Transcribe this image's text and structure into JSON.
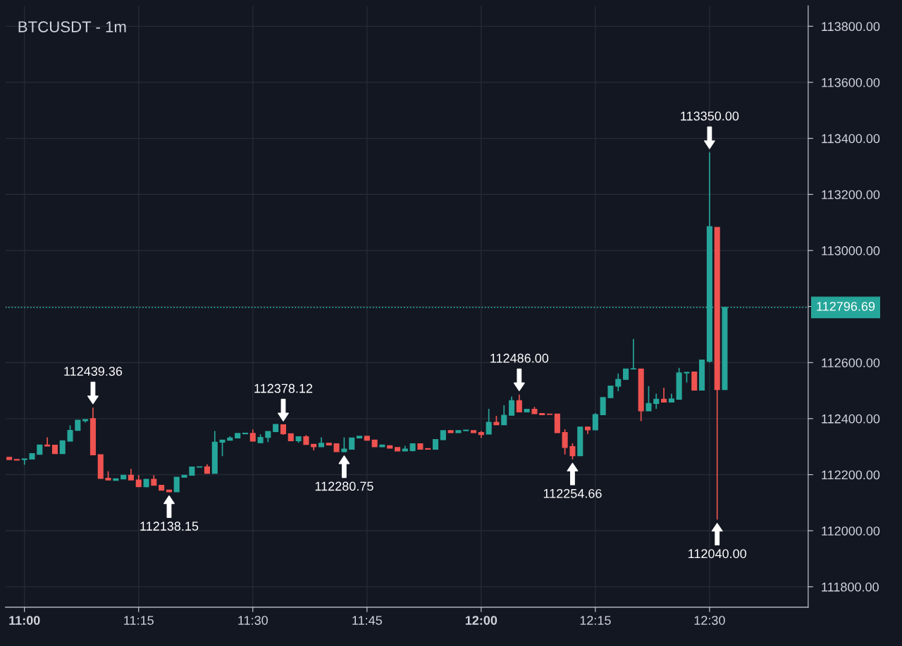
{
  "chart_data": {
    "type": "candlestick",
    "title": "BTCUSDT - 1m",
    "x": [
      10.9667,
      10.9833,
      11.0,
      11.0167,
      11.0333,
      11.05,
      11.0667,
      11.0833,
      11.1,
      11.1167,
      11.1333,
      11.15,
      11.1667,
      11.1833,
      11.2,
      11.2167,
      11.2333,
      11.25,
      11.2667,
      11.2833,
      11.3,
      11.3167,
      11.3333,
      11.35,
      11.3667,
      11.3833,
      11.4,
      11.4167,
      11.4333,
      11.45,
      11.4667,
      11.4833,
      11.5,
      11.5167,
      11.5333,
      11.55,
      11.5667,
      11.5833,
      11.6,
      11.6167,
      11.6333,
      11.65,
      11.6667,
      11.6833,
      11.7,
      11.7167,
      11.7333,
      11.75,
      11.7667,
      11.7833,
      11.8,
      11.8167,
      11.8333,
      11.85,
      11.8667,
      11.8833,
      11.9,
      11.9167,
      11.9333,
      11.95,
      11.9667,
      11.9833,
      12.0,
      12.0167,
      12.0333,
      12.05,
      12.0667,
      12.0833,
      12.1,
      12.1167,
      12.1333,
      12.15,
      12.1667,
      12.1833,
      12.2,
      12.2167,
      12.2333,
      12.25,
      12.2667,
      12.2833,
      12.3,
      12.3167,
      12.3333,
      12.35,
      12.3667,
      12.3833,
      12.4,
      12.4167,
      12.4333,
      12.45,
      12.4667,
      12.4833,
      12.5,
      12.5167,
      12.5333
    ],
    "ohlc": [
      [
        112262,
        112262,
        112254,
        112254
      ],
      [
        112254,
        112254,
        112252,
        112252
      ],
      [
        112254,
        112256,
        112235,
        112256
      ],
      [
        112256,
        112275,
        112256,
        112275
      ],
      [
        112273,
        112306,
        112273,
        112306
      ],
      [
        112306,
        112333,
        112302,
        112302
      ],
      [
        112305,
        112305,
        112275,
        112275
      ],
      [
        112275,
        112321,
        112275,
        112321
      ],
      [
        112320,
        112376,
        112320,
        112358
      ],
      [
        112358,
        112394,
        112358,
        112394
      ],
      [
        112393,
        112397,
        112386,
        112397
      ],
      [
        112400,
        112439.36,
        112271,
        112271
      ],
      [
        112271,
        112271,
        112187,
        112187
      ],
      [
        112187,
        112212,
        112181,
        112181
      ],
      [
        112180,
        112185,
        112180,
        112185
      ],
      [
        112185,
        112198,
        112185,
        112198
      ],
      [
        112198,
        112221,
        112181,
        112181
      ],
      [
        112181,
        112198,
        112157,
        112157
      ],
      [
        112157,
        112183,
        112155,
        112183
      ],
      [
        112183,
        112198,
        112162,
        112162
      ],
      [
        112162,
        112162,
        112145,
        112145
      ],
      [
        112145,
        112145,
        112138.15,
        112139
      ],
      [
        112139,
        112191,
        112139,
        112191
      ],
      [
        112191,
        112198,
        112191,
        112198
      ],
      [
        112198,
        112227,
        112198,
        112227
      ],
      [
        112227,
        112229,
        112227,
        112228
      ],
      [
        112228,
        112237,
        112205,
        112205
      ],
      [
        112205,
        112356,
        112205,
        112316
      ],
      [
        112316,
        112323,
        112266,
        112323
      ],
      [
        112323,
        112337,
        112323,
        112331
      ],
      [
        112331,
        112347,
        112331,
        112347
      ],
      [
        112346,
        112348,
        112346,
        112348
      ],
      [
        112347,
        112361,
        112320,
        112320
      ],
      [
        112314,
        112344,
        112314,
        112333
      ],
      [
        112333,
        112354,
        112316,
        112354
      ],
      [
        112354,
        112379,
        112354,
        112379
      ],
      [
        112378,
        112378.12,
        112342,
        112346
      ],
      [
        112346,
        112346,
        112321,
        112321
      ],
      [
        112321,
        112335,
        112314,
        112335
      ],
      [
        112335,
        112341,
        112308,
        112308
      ],
      [
        112308,
        112308,
        112287,
        112300
      ],
      [
        112300,
        112333,
        112300,
        112312
      ],
      [
        112312,
        112312,
        112306,
        112306
      ],
      [
        112310,
        112310,
        112282,
        112282
      ],
      [
        112282,
        112333,
        112280.75,
        112291
      ],
      [
        112291,
        112331,
        112291,
        112331
      ],
      [
        112331,
        112337,
        112331,
        112337
      ],
      [
        112337,
        112337,
        112323,
        112323
      ],
      [
        112323,
        112323,
        112300,
        112300
      ],
      [
        112300,
        112306,
        112300,
        112306
      ],
      [
        112303,
        112303,
        112295,
        112295
      ],
      [
        112297,
        112297,
        112285,
        112285
      ],
      [
        112285,
        112303,
        112285,
        112291
      ],
      [
        112286,
        112310,
        112283,
        112310
      ],
      [
        112310,
        112310,
        112291,
        112291
      ],
      [
        112293,
        112293,
        112291,
        112291
      ],
      [
        112291,
        112325,
        112291,
        112325
      ],
      [
        112325,
        112357,
        112325,
        112357
      ],
      [
        112357,
        112357,
        112350,
        112350
      ],
      [
        112350,
        112357,
        112350,
        112357
      ],
      [
        112357,
        112359,
        112357,
        112359
      ],
      [
        112357,
        112357,
        112350,
        112350
      ],
      [
        112350,
        112356,
        112331,
        112343
      ],
      [
        112345,
        112435,
        112345,
        112387
      ],
      [
        112387,
        112410,
        112378,
        112378
      ],
      [
        112378,
        112448,
        112378,
        112412
      ],
      [
        112412,
        112479,
        112412,
        112464
      ],
      [
        112464,
        112486.0,
        112424,
        112424
      ],
      [
        112424,
        112433,
        112424,
        112433
      ],
      [
        112433,
        112442,
        112418,
        112418
      ],
      [
        112418,
        112418,
        112414,
        112414
      ],
      [
        112416,
        112416,
        112415,
        112415
      ],
      [
        112416,
        112416,
        112350,
        112350
      ],
      [
        112350,
        112362,
        112272,
        112297
      ],
      [
        112300,
        112312,
        112254.66,
        112268
      ],
      [
        112268,
        112370,
        112268,
        112370
      ],
      [
        112370,
        112370,
        112345,
        112360
      ],
      [
        112360,
        112420,
        112360,
        112414
      ],
      [
        112414,
        112475,
        112414,
        112475
      ],
      [
        112475,
        112516,
        112475,
        112516
      ],
      [
        112516,
        112561,
        112498,
        112540
      ],
      [
        112540,
        112577,
        112540,
        112577
      ],
      [
        112577,
        112684,
        112577,
        112578
      ],
      [
        112577,
        112577,
        112391,
        112428
      ],
      [
        112428,
        112516,
        112428,
        112454
      ],
      [
        112454,
        112489,
        112435,
        112469
      ],
      [
        112469,
        112510,
        112459,
        112459
      ],
      [
        112459,
        112489,
        112459,
        112470
      ],
      [
        112469,
        112581,
        112469,
        112563
      ],
      [
        112563,
        112567,
        112529,
        112565
      ],
      [
        112566,
        112566,
        112502,
        112502
      ],
      [
        112502,
        112609,
        112502,
        112609
      ],
      [
        112605,
        113350,
        112600,
        113085
      ],
      [
        113082,
        113082,
        112040,
        112504
      ],
      [
        112504,
        112796.69,
        112504,
        112796.69
      ]
    ],
    "xlim": [
      10.9583,
      12.716
    ],
    "xticks": [
      {
        "value": 11,
        "label": "11:00"
      },
      {
        "value": 11.25,
        "label": "11:15"
      },
      {
        "value": 11.5,
        "label": "11:30"
      },
      {
        "value": 11.75,
        "label": "11:45"
      },
      {
        "value": 12,
        "label": "12:00"
      },
      {
        "value": 12.25,
        "label": "12:15"
      },
      {
        "value": 12.5,
        "label": "12:30"
      }
    ],
    "ylim": [
      111727,
      113873
    ],
    "yticks": [
      {
        "value": 111800,
        "label": "111800.00"
      },
      {
        "value": 112000,
        "label": "112000.00"
      },
      {
        "value": 112200,
        "label": "112200.00"
      },
      {
        "value": 112400,
        "label": "112400.00"
      },
      {
        "value": 112600,
        "label": "112600.00"
      },
      {
        "value": 112800,
        "label": null
      },
      {
        "value": 113000,
        "label": "113000.00"
      },
      {
        "value": 113200,
        "label": "113200.00"
      },
      {
        "value": 113400,
        "label": "113400.00"
      },
      {
        "value": 113600,
        "label": "113600.00"
      },
      {
        "value": 113800,
        "label": "113800.00"
      }
    ],
    "grid": true,
    "ref_lines": [
      {
        "axis": "y",
        "value": 112796.69,
        "label": "112796.69",
        "color": "#26a69a",
        "line_style": "dotted"
      }
    ],
    "annotations": [
      {
        "text": "112439.36",
        "x": 11.15,
        "y": 112439.36
      },
      {
        "text": "112138.15",
        "x": 11.3167,
        "y": 112138.15
      },
      {
        "text": "112378.12",
        "x": 11.5667,
        "y": 112378.12
      },
      {
        "text": "112280.75",
        "x": 11.7,
        "y": 112280.75
      },
      {
        "text": "112486.00",
        "x": 12.0833,
        "y": 112486.0
      },
      {
        "text": "112254.66",
        "x": 12.2,
        "y": 112254.66
      },
      {
        "text": "113350.00",
        "x": 12.5,
        "y": 113350.0
      },
      {
        "text": "112040.00",
        "x": 12.5167,
        "y": 112040.0
      }
    ]
  }
}
